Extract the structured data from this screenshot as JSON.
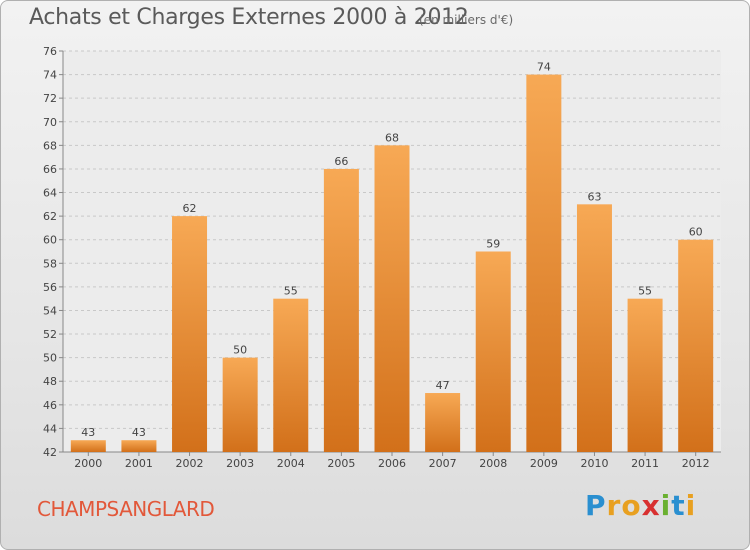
{
  "title": "Achats et Charges Externes 2000 à 2012",
  "subtitle": "(en milliers d'€)",
  "commune": "CHAMPSANGLARD",
  "logo": {
    "letters": [
      "P",
      "r",
      "o",
      "x",
      "i",
      "t",
      "i"
    ],
    "colors": [
      "#2a8fd0",
      "#e8a020",
      "#e8a020",
      "#d83030",
      "#6ab030",
      "#2a8fd0",
      "#e8a020"
    ]
  },
  "colors": {
    "bar_top": "#f7a955",
    "bar_bottom": "#d2701a",
    "grid": "#c8c8c8",
    "plot_bg": "#ececec",
    "tick_text": "#444444",
    "commune_text": "#e2583a"
  },
  "chart_data": {
    "type": "bar",
    "categories": [
      "2000",
      "2001",
      "2002",
      "2003",
      "2004",
      "2005",
      "2006",
      "2007",
      "2008",
      "2009",
      "2010",
      "2011",
      "2012"
    ],
    "values": [
      43,
      43,
      62,
      50,
      55,
      66,
      68,
      47,
      59,
      74,
      63,
      55,
      60
    ],
    "ylim": [
      42,
      76
    ],
    "yticks": [
      42,
      44,
      46,
      48,
      50,
      52,
      54,
      56,
      58,
      60,
      62,
      64,
      66,
      68,
      70,
      72,
      74,
      76
    ],
    "grid": true,
    "data_labels": true
  }
}
